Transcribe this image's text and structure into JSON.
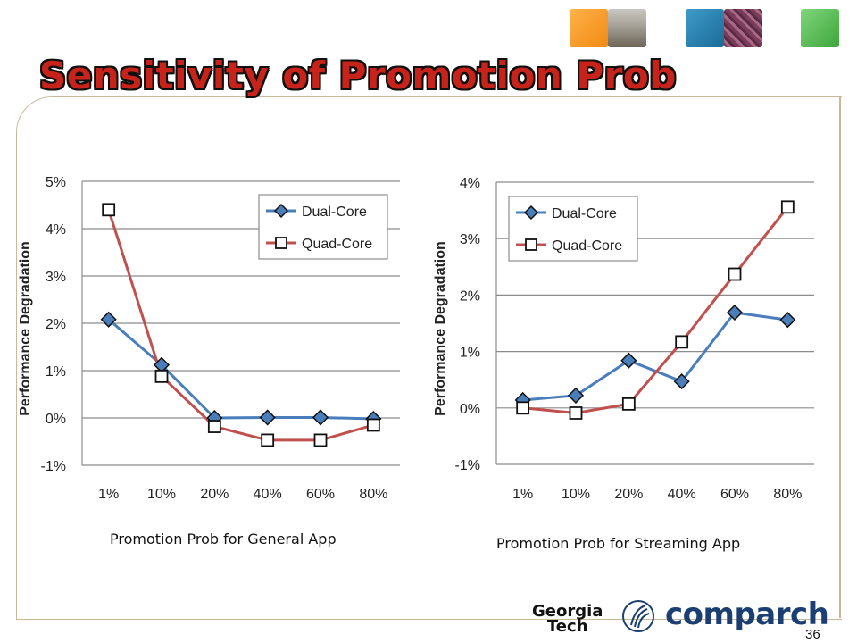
{
  "slide": {
    "title": "Sensitivity of Promotion Prob",
    "page_number": "36",
    "logos": {
      "georgia_line1": "Georgia",
      "georgia_line2": "Tech",
      "comparch": "comparch"
    }
  },
  "chart_data": [
    {
      "type": "line",
      "caption": "Promotion Prob for General App",
      "ylabel": "Performance Degradation",
      "xlabel": "",
      "categories": [
        "1%",
        "10%",
        "20%",
        "40%",
        "60%",
        "80%"
      ],
      "ylim": [
        -1,
        5
      ],
      "yticks": [
        "-1%",
        "0%",
        "1%",
        "2%",
        "3%",
        "4%",
        "5%"
      ],
      "grid": true,
      "legend_position": "top-right",
      "series": [
        {
          "name": "Dual-Core",
          "values": [
            2.08,
            1.12,
            0.0,
            0.01,
            0.01,
            -0.02
          ],
          "color": "#4a7ebb",
          "marker": "diamond"
        },
        {
          "name": "Quad-Core",
          "values": [
            4.4,
            0.88,
            -0.18,
            -0.47,
            -0.47,
            -0.15
          ],
          "color": "#c0504d",
          "marker": "square"
        }
      ]
    },
    {
      "type": "line",
      "caption": "Promotion Prob for Streaming App",
      "ylabel": "Performance Degradation",
      "xlabel": "",
      "categories": [
        "1%",
        "10%",
        "20%",
        "40%",
        "60%",
        "80%"
      ],
      "ylim": [
        -1,
        4
      ],
      "yticks": [
        "-1%",
        "0%",
        "1%",
        "2%",
        "3%",
        "4%"
      ],
      "grid": true,
      "legend_position": "top-left",
      "series": [
        {
          "name": "Dual-Core",
          "values": [
            0.14,
            0.22,
            0.84,
            0.47,
            1.69,
            1.56
          ],
          "color": "#4a7ebb",
          "marker": "diamond"
        },
        {
          "name": "Quad-Core",
          "values": [
            0.0,
            -0.09,
            0.07,
            1.17,
            2.37,
            3.56
          ],
          "color": "#c0504d",
          "marker": "square"
        }
      ]
    }
  ]
}
